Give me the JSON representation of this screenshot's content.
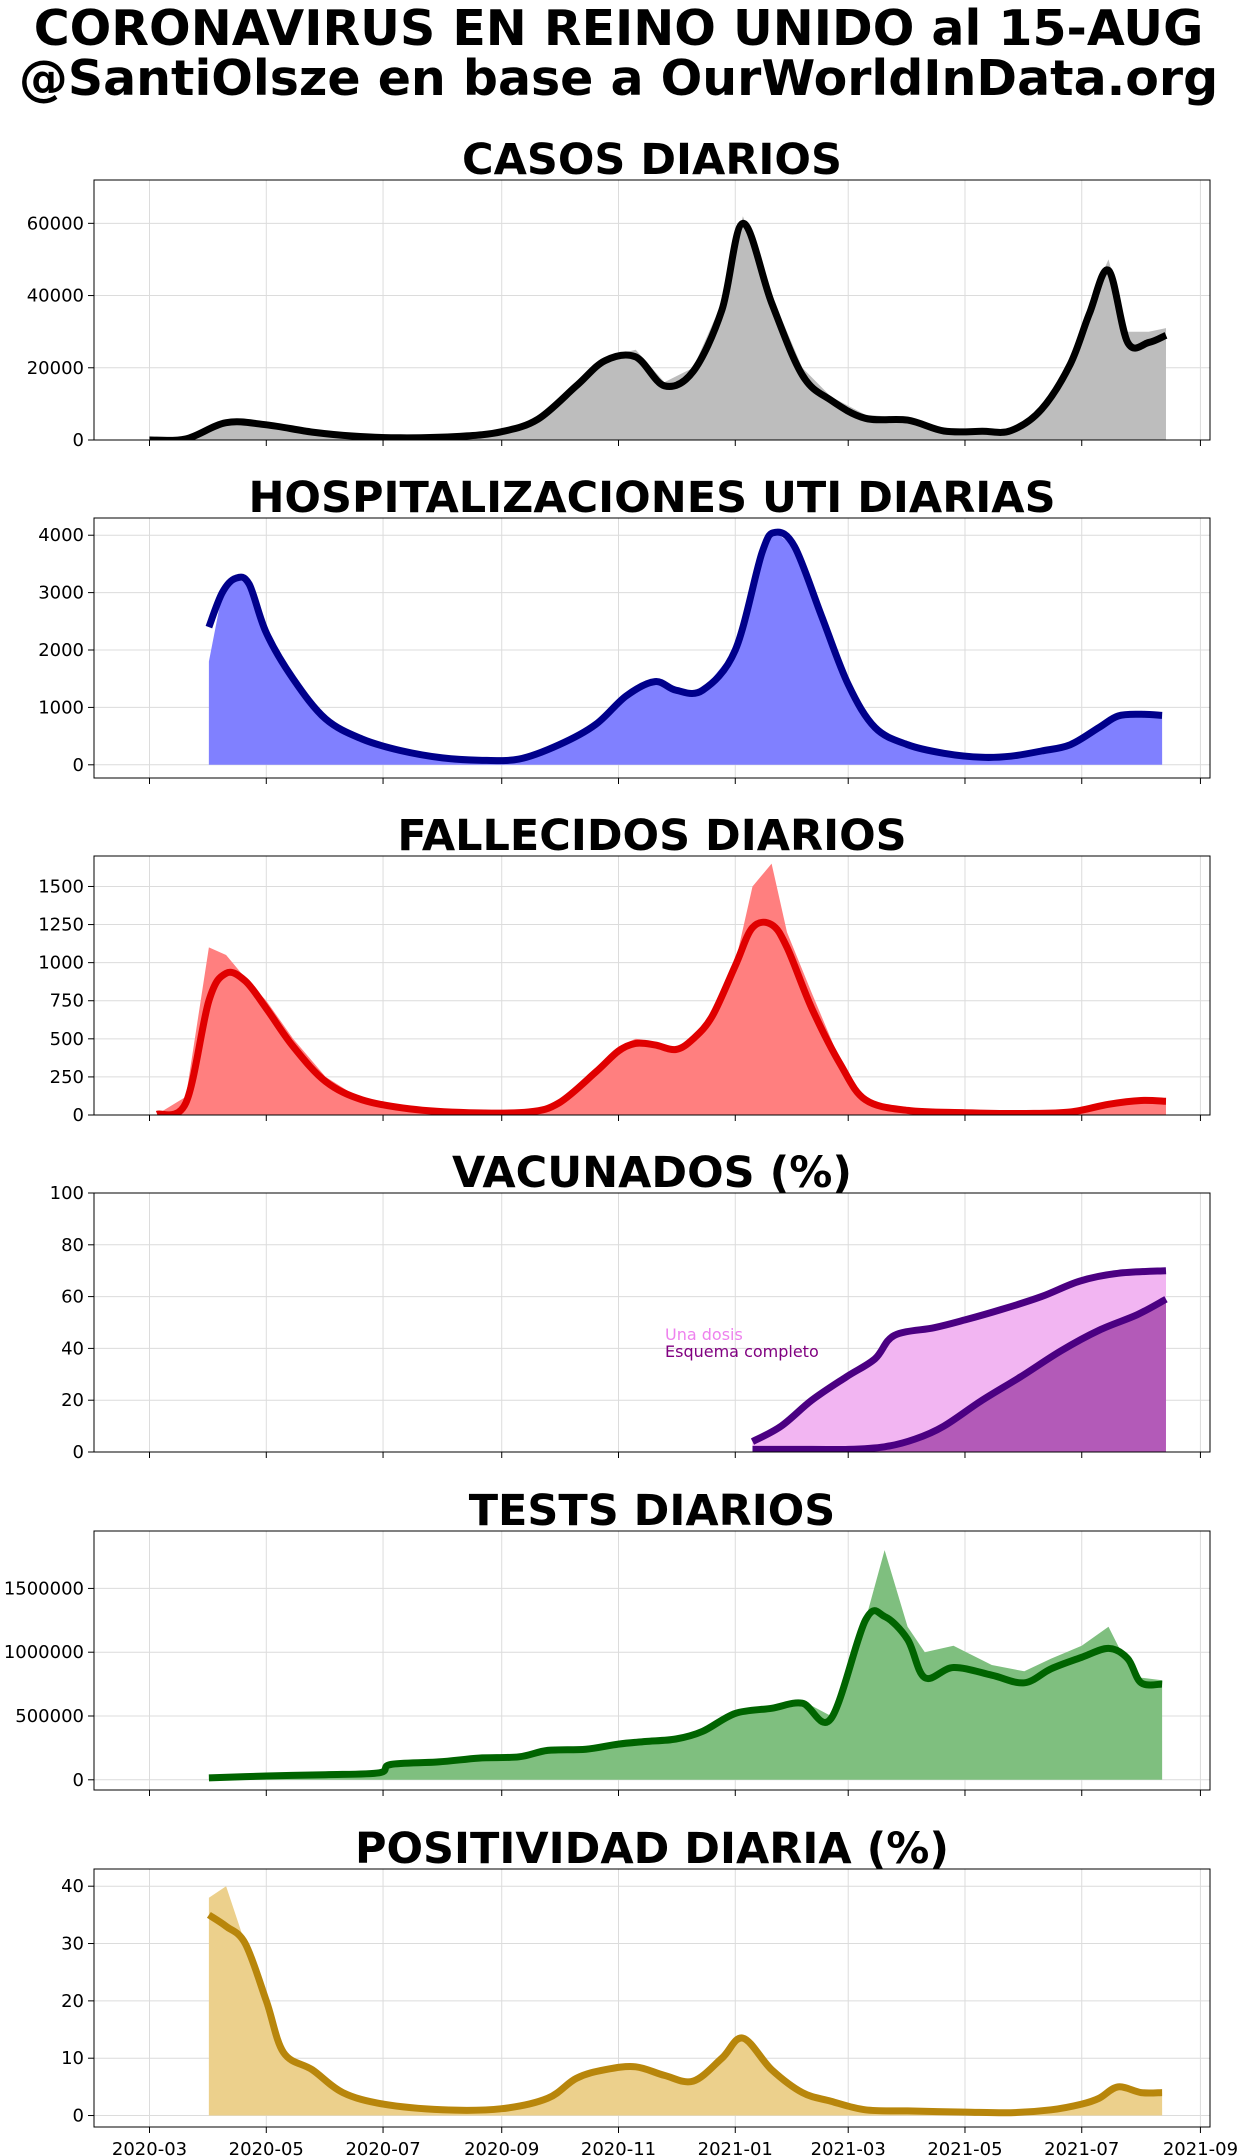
{
  "title_line1": "CORONAVIRUS EN REINO UNIDO al 15-AUG",
  "title_line2": "@SantiOlsze en base a OurWorldInData.org",
  "chart_data": [
    {
      "type": "area",
      "title": "CASOS DIARIOS",
      "xlabel": "",
      "ylabel": "",
      "ylim": [
        0,
        72000
      ],
      "yticks": [
        0,
        20000,
        40000,
        60000
      ],
      "ytick_labels": [
        "0",
        "20000",
        "40000",
        "60000"
      ],
      "grid": true,
      "fill_color": "#bdbdbd",
      "line_color": "#000000",
      "x": [
        "2020-03-01",
        "2020-03-20",
        "2020-04-10",
        "2020-05-01",
        "2020-05-25",
        "2020-06-15",
        "2020-07-10",
        "2020-08-10",
        "2020-09-01",
        "2020-09-20",
        "2020-10-10",
        "2020-10-25",
        "2020-11-10",
        "2020-11-25",
        "2020-12-10",
        "2020-12-25",
        "2021-01-05",
        "2021-01-20",
        "2021-02-05",
        "2021-02-20",
        "2021-03-10",
        "2021-04-01",
        "2021-04-20",
        "2021-05-10",
        "2021-05-25",
        "2021-06-10",
        "2021-06-25",
        "2021-07-05",
        "2021-07-15",
        "2021-07-25",
        "2021-08-05",
        "2021-08-14"
      ],
      "raw": [
        0,
        500,
        5000,
        4500,
        2500,
        1200,
        600,
        900,
        2500,
        6000,
        16000,
        23000,
        25000,
        16000,
        20000,
        38000,
        62000,
        40000,
        20000,
        12000,
        7000,
        6000,
        2500,
        2500,
        2500,
        9000,
        22000,
        38000,
        50000,
        30000,
        30000,
        31000
      ],
      "values": [
        0,
        300,
        4800,
        4200,
        2200,
        1100,
        600,
        1000,
        2300,
        5800,
        15000,
        22000,
        23000,
        15000,
        19000,
        36000,
        60000,
        38000,
        18000,
        11000,
        6000,
        5500,
        2500,
        2400,
        2600,
        8500,
        21000,
        35000,
        47000,
        27000,
        27000,
        29000
      ]
    },
    {
      "type": "area",
      "title": "HOSPITALIZACIONES UTI DIARIAS",
      "xlabel": "",
      "ylabel": "",
      "ylim": [
        -230,
        4300
      ],
      "yticks": [
        0,
        1000,
        2000,
        3000,
        4000
      ],
      "ytick_labels": [
        "0",
        "1000",
        "2000",
        "3000",
        "4000"
      ],
      "grid": true,
      "fill_color": "#8080ff",
      "line_color": "#00008b",
      "x": [
        "2020-04-01",
        "2020-04-08",
        "2020-04-15",
        "2020-04-22",
        "2020-05-01",
        "2020-05-15",
        "2020-06-01",
        "2020-06-20",
        "2020-07-10",
        "2020-08-01",
        "2020-08-20",
        "2020-09-10",
        "2020-10-01",
        "2020-10-20",
        "2020-11-05",
        "2020-11-20",
        "2020-12-01",
        "2020-12-15",
        "2021-01-01",
        "2021-01-15",
        "2021-01-22",
        "2021-02-01",
        "2021-02-15",
        "2021-03-01",
        "2021-03-15",
        "2021-04-01",
        "2021-04-20",
        "2021-05-10",
        "2021-05-25",
        "2021-06-10",
        "2021-06-25",
        "2021-07-10",
        "2021-07-20",
        "2021-08-01",
        "2021-08-12"
      ],
      "raw": [
        1800,
        3000,
        3250,
        3150,
        2300,
        1500,
        800,
        450,
        250,
        120,
        80,
        100,
        350,
        700,
        1200,
        1450,
        1300,
        1300,
        2000,
        3700,
        4050,
        3800,
        2600,
        1400,
        650,
        350,
        200,
        130,
        150,
        240,
        350,
        650,
        850,
        880,
        860
      ],
      "values": [
        2400,
        3000,
        3250,
        3150,
        2300,
        1500,
        800,
        450,
        250,
        120,
        80,
        100,
        350,
        700,
        1200,
        1450,
        1300,
        1300,
        2000,
        3700,
        4050,
        3800,
        2600,
        1400,
        650,
        350,
        200,
        130,
        150,
        240,
        350,
        650,
        850,
        880,
        860
      ]
    },
    {
      "type": "area",
      "title": "FALLECIDOS DIARIOS",
      "xlabel": "",
      "ylabel": "",
      "ylim": [
        0,
        1700
      ],
      "yticks": [
        0,
        250,
        500,
        750,
        1000,
        1250,
        1500
      ],
      "ytick_labels": [
        "0",
        "250",
        "500",
        "750",
        "1000",
        "1250",
        "1500"
      ],
      "grid": true,
      "fill_color": "#ff7f7f",
      "line_color": "#e00000",
      "x": [
        "2020-03-05",
        "2020-03-20",
        "2020-04-01",
        "2020-04-10",
        "2020-04-20",
        "2020-05-01",
        "2020-05-15",
        "2020-06-01",
        "2020-06-20",
        "2020-07-15",
        "2020-08-15",
        "2020-09-15",
        "2020-10-01",
        "2020-10-20",
        "2020-11-01",
        "2020-11-10",
        "2020-11-20",
        "2020-12-01",
        "2020-12-10",
        "2020-12-20",
        "2021-01-01",
        "2021-01-10",
        "2021-01-20",
        "2021-01-28",
        "2021-02-10",
        "2021-02-25",
        "2021-03-10",
        "2021-04-01",
        "2021-05-01",
        "2021-06-01",
        "2021-06-25",
        "2021-07-15",
        "2021-08-01",
        "2021-08-14"
      ],
      "raw": [
        5,
        120,
        1100,
        1050,
        900,
        750,
        500,
        250,
        100,
        40,
        15,
        20,
        90,
        300,
        450,
        500,
        480,
        420,
        520,
        650,
        1000,
        1500,
        1650,
        1200,
        800,
        350,
        100,
        30,
        15,
        10,
        20,
        80,
        110,
        100
      ],
      "values": [
        5,
        80,
        750,
        930,
        880,
        700,
        450,
        220,
        100,
        40,
        15,
        20,
        80,
        280,
        420,
        470,
        460,
        430,
        500,
        650,
        980,
        1230,
        1250,
        1100,
        700,
        330,
        100,
        30,
        15,
        10,
        20,
        70,
        95,
        90
      ]
    },
    {
      "type": "area",
      "title": "VACUNADOS (%)",
      "xlabel": "",
      "ylabel": "",
      "ylim": [
        0,
        100
      ],
      "yticks": [
        0,
        20,
        40,
        60,
        80,
        100
      ],
      "ytick_labels": [
        "0",
        "20",
        "40",
        "60",
        "80",
        "100"
      ],
      "grid": true,
      "annotations": [
        {
          "text": "Una dosis",
          "color": "#ee82ee"
        },
        {
          "text": "Esquema completo",
          "color": "#800080"
        }
      ],
      "series": [
        {
          "name": "Una dosis",
          "fill_color": "#f2b5f2",
          "line_color": "#4b0082",
          "x": [
            "2021-01-10",
            "2021-01-25",
            "2021-02-10",
            "2021-02-28",
            "2021-03-15",
            "2021-03-25",
            "2021-04-15",
            "2021-05-01",
            "2021-05-20",
            "2021-06-10",
            "2021-06-30",
            "2021-07-20",
            "2021-08-14"
          ],
          "values": [
            4,
            10,
            20,
            29,
            36,
            45,
            48,
            51,
            55,
            60,
            66,
            69,
            70
          ]
        },
        {
          "name": "Esquema completo",
          "fill_color": "#b35ab8",
          "line_color": "#4b0082",
          "x": [
            "2021-01-10",
            "2021-02-10",
            "2021-03-01",
            "2021-03-20",
            "2021-04-05",
            "2021-04-20",
            "2021-05-10",
            "2021-05-30",
            "2021-06-20",
            "2021-07-10",
            "2021-07-30",
            "2021-08-14"
          ],
          "values": [
            1,
            1,
            1,
            2,
            5,
            10,
            20,
            29,
            39,
            47,
            53,
            59
          ]
        }
      ]
    },
    {
      "type": "area",
      "title": "TESTS DIARIOS",
      "xlabel": "",
      "ylabel": "",
      "ylim": [
        -80000,
        1950000
      ],
      "yticks": [
        0,
        500000,
        1000000,
        1500000
      ],
      "ytick_labels": [
        "0",
        "500000",
        "1000000",
        "1500000"
      ],
      "grid": true,
      "fill_color": "#7fbf7f",
      "line_color": "#006400",
      "x": [
        "2020-04-01",
        "2020-05-01",
        "2020-06-01",
        "2020-06-29",
        "2020-07-05",
        "2020-07-30",
        "2020-08-20",
        "2020-09-10",
        "2020-09-25",
        "2020-10-15",
        "2020-11-01",
        "2020-11-15",
        "2020-12-01",
        "2020-12-15",
        "2021-01-01",
        "2021-01-20",
        "2021-02-05",
        "2021-02-20",
        "2021-03-10",
        "2021-03-20",
        "2021-04-01",
        "2021-04-10",
        "2021-04-25",
        "2021-05-15",
        "2021-06-01",
        "2021-06-15",
        "2021-07-01",
        "2021-07-15",
        "2021-07-25",
        "2021-08-01",
        "2021-08-12"
      ],
      "raw": [
        15000,
        30000,
        40000,
        55000,
        120000,
        140000,
        170000,
        180000,
        230000,
        250000,
        280000,
        300000,
        320000,
        380000,
        500000,
        580000,
        620000,
        500000,
        1250000,
        1800000,
        1200000,
        1000000,
        1050000,
        900000,
        850000,
        950000,
        1050000,
        1200000,
        900000,
        800000,
        780000
      ],
      "values": [
        15000,
        30000,
        40000,
        55000,
        120000,
        140000,
        170000,
        180000,
        230000,
        240000,
        280000,
        300000,
        320000,
        380000,
        520000,
        560000,
        600000,
        480000,
        1250000,
        1280000,
        1100000,
        800000,
        880000,
        820000,
        760000,
        870000,
        960000,
        1030000,
        950000,
        760000,
        750000
      ]
    },
    {
      "type": "area",
      "title": "POSITIVIDAD DIARIA (%)",
      "xlabel": "",
      "ylabel": "",
      "ylim": [
        -2,
        43
      ],
      "yticks": [
        0,
        10,
        20,
        30,
        40
      ],
      "ytick_labels": [
        "0",
        "10",
        "20",
        "30",
        "40"
      ],
      "grid": true,
      "fill_color": "#ecd08c",
      "line_color": "#b8860b",
      "x": [
        "2020-04-01",
        "2020-04-10",
        "2020-04-20",
        "2020-05-01",
        "2020-05-10",
        "2020-05-25",
        "2020-06-10",
        "2020-07-01",
        "2020-08-01",
        "2020-09-01",
        "2020-09-25",
        "2020-10-10",
        "2020-10-25",
        "2020-11-10",
        "2020-11-25",
        "2020-12-10",
        "2020-12-25",
        "2021-01-05",
        "2021-01-20",
        "2021-02-05",
        "2021-02-20",
        "2021-03-10",
        "2021-04-01",
        "2021-05-01",
        "2021-05-25",
        "2021-06-15",
        "2021-07-01",
        "2021-07-10",
        "2021-07-20",
        "2021-08-01",
        "2021-08-12"
      ],
      "raw": [
        38,
        40,
        30,
        18,
        11,
        8,
        4,
        2,
        1,
        1.2,
        3,
        7,
        8,
        9,
        7,
        6,
        10,
        14,
        8,
        4,
        2.5,
        1,
        0.8,
        0.6,
        0.5,
        1,
        2,
        3,
        5,
        4,
        4
      ],
      "values": [
        35,
        33,
        30,
        20,
        11,
        8,
        4,
        2,
        1,
        1.2,
        3,
        6.5,
        8,
        8.5,
        7,
        6,
        10,
        13.5,
        8,
        4,
        2.5,
        1,
        0.8,
        0.6,
        0.5,
        1,
        2,
        3,
        5,
        4,
        4
      ]
    }
  ],
  "x_axis": {
    "range": [
      "2020-02-01",
      "2021-09-06"
    ],
    "ticks": [
      "2020-03-01",
      "2020-05-01",
      "2020-07-01",
      "2020-09-01",
      "2020-11-01",
      "2021-01-01",
      "2021-03-01",
      "2021-05-01",
      "2021-07-01",
      "2021-09-01"
    ],
    "tick_labels": [
      "2020-03",
      "2020-05",
      "2020-07",
      "2020-09",
      "2020-11",
      "2021-01",
      "2021-03",
      "2021-05",
      "2021-07",
      "2021-09"
    ]
  }
}
